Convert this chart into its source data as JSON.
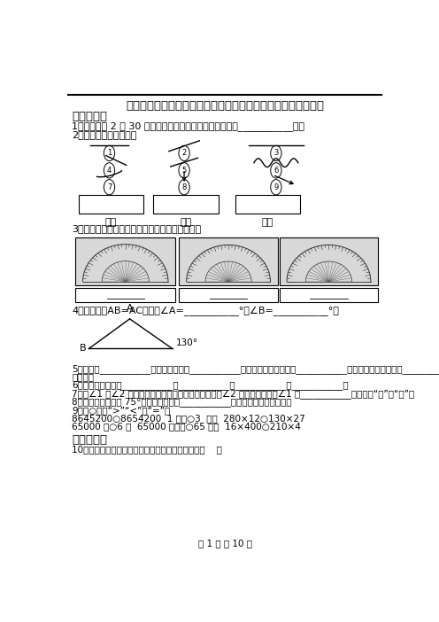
{
  "title": "人教版四年级数学上册《第三单元角的度量》单元检测卷及答案",
  "bg_color": "#ffffff",
  "q1": "1．当时钟是 2 点 30 分时，分针和时针所成的较小的角是___________度。",
  "q2": "2．填一填．（填序号）",
  "q3": "3．仔细观察，并写出下面各量角器中角的度数。",
  "q4": "4．如下图，AB=AC，那么∠A=___________°，∠B=___________°。",
  "q5": "5．线段有___________个端点；射线有___________个端点；过两点可以画___________条直线；过一点可以画___________",
  "q5b": "条射线。",
  "q6": "6．我们学过的角有___________、___________、___________、___________。",
  "q7": "7．当∠1 和∠2 共用一条边时，可以组成一个平角；且∠2 比直角小；这时∠1 是___________角。（填“锐”或“钒”）",
  "q8": "8．小红先画了一个 75°的角，再画一个___________的角就能拼成一个平角。",
  "q9": "9．在○里填“>”“<”或“=”。",
  "q9a": "8645200○8654200  1 平角○3  直角  280×12○130×27",
  "q9b": "65000 万○6 亿  65000 平方米○65 公顿  16×400○210×4",
  "sec2": "二、选择题",
  "q10": "10．将一张圆形纸片对折三次，得到的角的度数是（    ）",
  "footer": "第 1 页 共 10 页",
  "sec1": "一、填空题",
  "zx_label": "直线",
  "xd_label": "线段",
  "sx_label": "射线"
}
